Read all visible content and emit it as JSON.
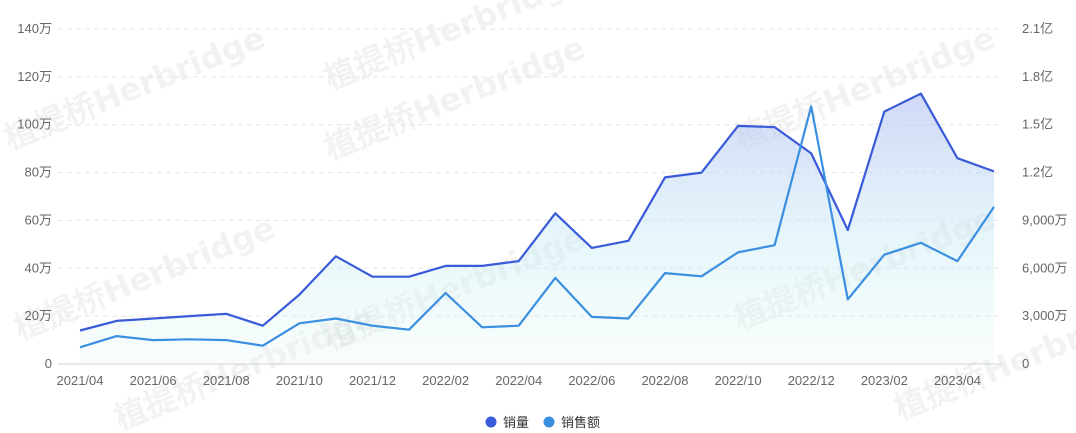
{
  "watermark": "植提桥Herbridge",
  "chart_data": {
    "type": "line",
    "title": "",
    "xlabel": "",
    "ylabel": "",
    "x": [
      "2021/04",
      "2021/05",
      "2021/06",
      "2021/07",
      "2021/08",
      "2021/09",
      "2021/10",
      "2021/11",
      "2021/12",
      "2022/01",
      "2022/02",
      "2022/03",
      "2022/04",
      "2022/05",
      "2022/06",
      "2022/07",
      "2022/08",
      "2022/09",
      "2022/10",
      "2022/11",
      "2022/12",
      "2023/01",
      "2023/02",
      "2023/03",
      "2023/04",
      "2023/05"
    ],
    "x_tick_labels": [
      "2021/04",
      "2021/06",
      "2021/08",
      "2021/10",
      "2021/12",
      "2022/02",
      "2022/04",
      "2022/06",
      "2022/08",
      "2022/10",
      "2022/12",
      "2023/02",
      "2023/04"
    ],
    "y_left": {
      "ticks": [
        0,
        200000,
        400000,
        600000,
        800000,
        1000000,
        1200000,
        1400000
      ],
      "tick_labels": [
        "0",
        "20万",
        "40万",
        "60万",
        "80万",
        "100万",
        "120万",
        "140万"
      ],
      "range": [
        0,
        1400000
      ]
    },
    "y_right": {
      "ticks": [
        0,
        30000000,
        60000000,
        90000000,
        120000000,
        150000000,
        180000000,
        210000000
      ],
      "tick_labels": [
        "0",
        "3,000万",
        "6,000万",
        "9,000万",
        "1.2亿",
        "1.5亿",
        "1.8亿",
        "2.1亿"
      ],
      "range": [
        0,
        210000000
      ]
    },
    "grid": true,
    "legend_position": "bottom-center",
    "series": [
      {
        "name": "销量",
        "axis": "left",
        "color": "#3a5bd9",
        "area": true,
        "values": [
          140000,
          180000,
          190000,
          200000,
          210000,
          160000,
          290000,
          450000,
          365000,
          365000,
          410000,
          410000,
          430000,
          630000,
          485000,
          515000,
          780000,
          800000,
          995000,
          990000,
          880000,
          560000,
          1055000,
          1130000,
          860000,
          805000
        ]
      },
      {
        "name": "销售额",
        "axis": "right",
        "color": "#3b8fe0",
        "area": false,
        "values": [
          10500000,
          17500000,
          15000000,
          15500000,
          15000000,
          11500000,
          25500000,
          28500000,
          24000000,
          21500000,
          44500000,
          23000000,
          24000000,
          54000000,
          29500000,
          28500000,
          57000000,
          55000000,
          70000000,
          74500000,
          161500000,
          40500000,
          68500000,
          76000000,
          64500000,
          98500000
        ]
      }
    ]
  }
}
